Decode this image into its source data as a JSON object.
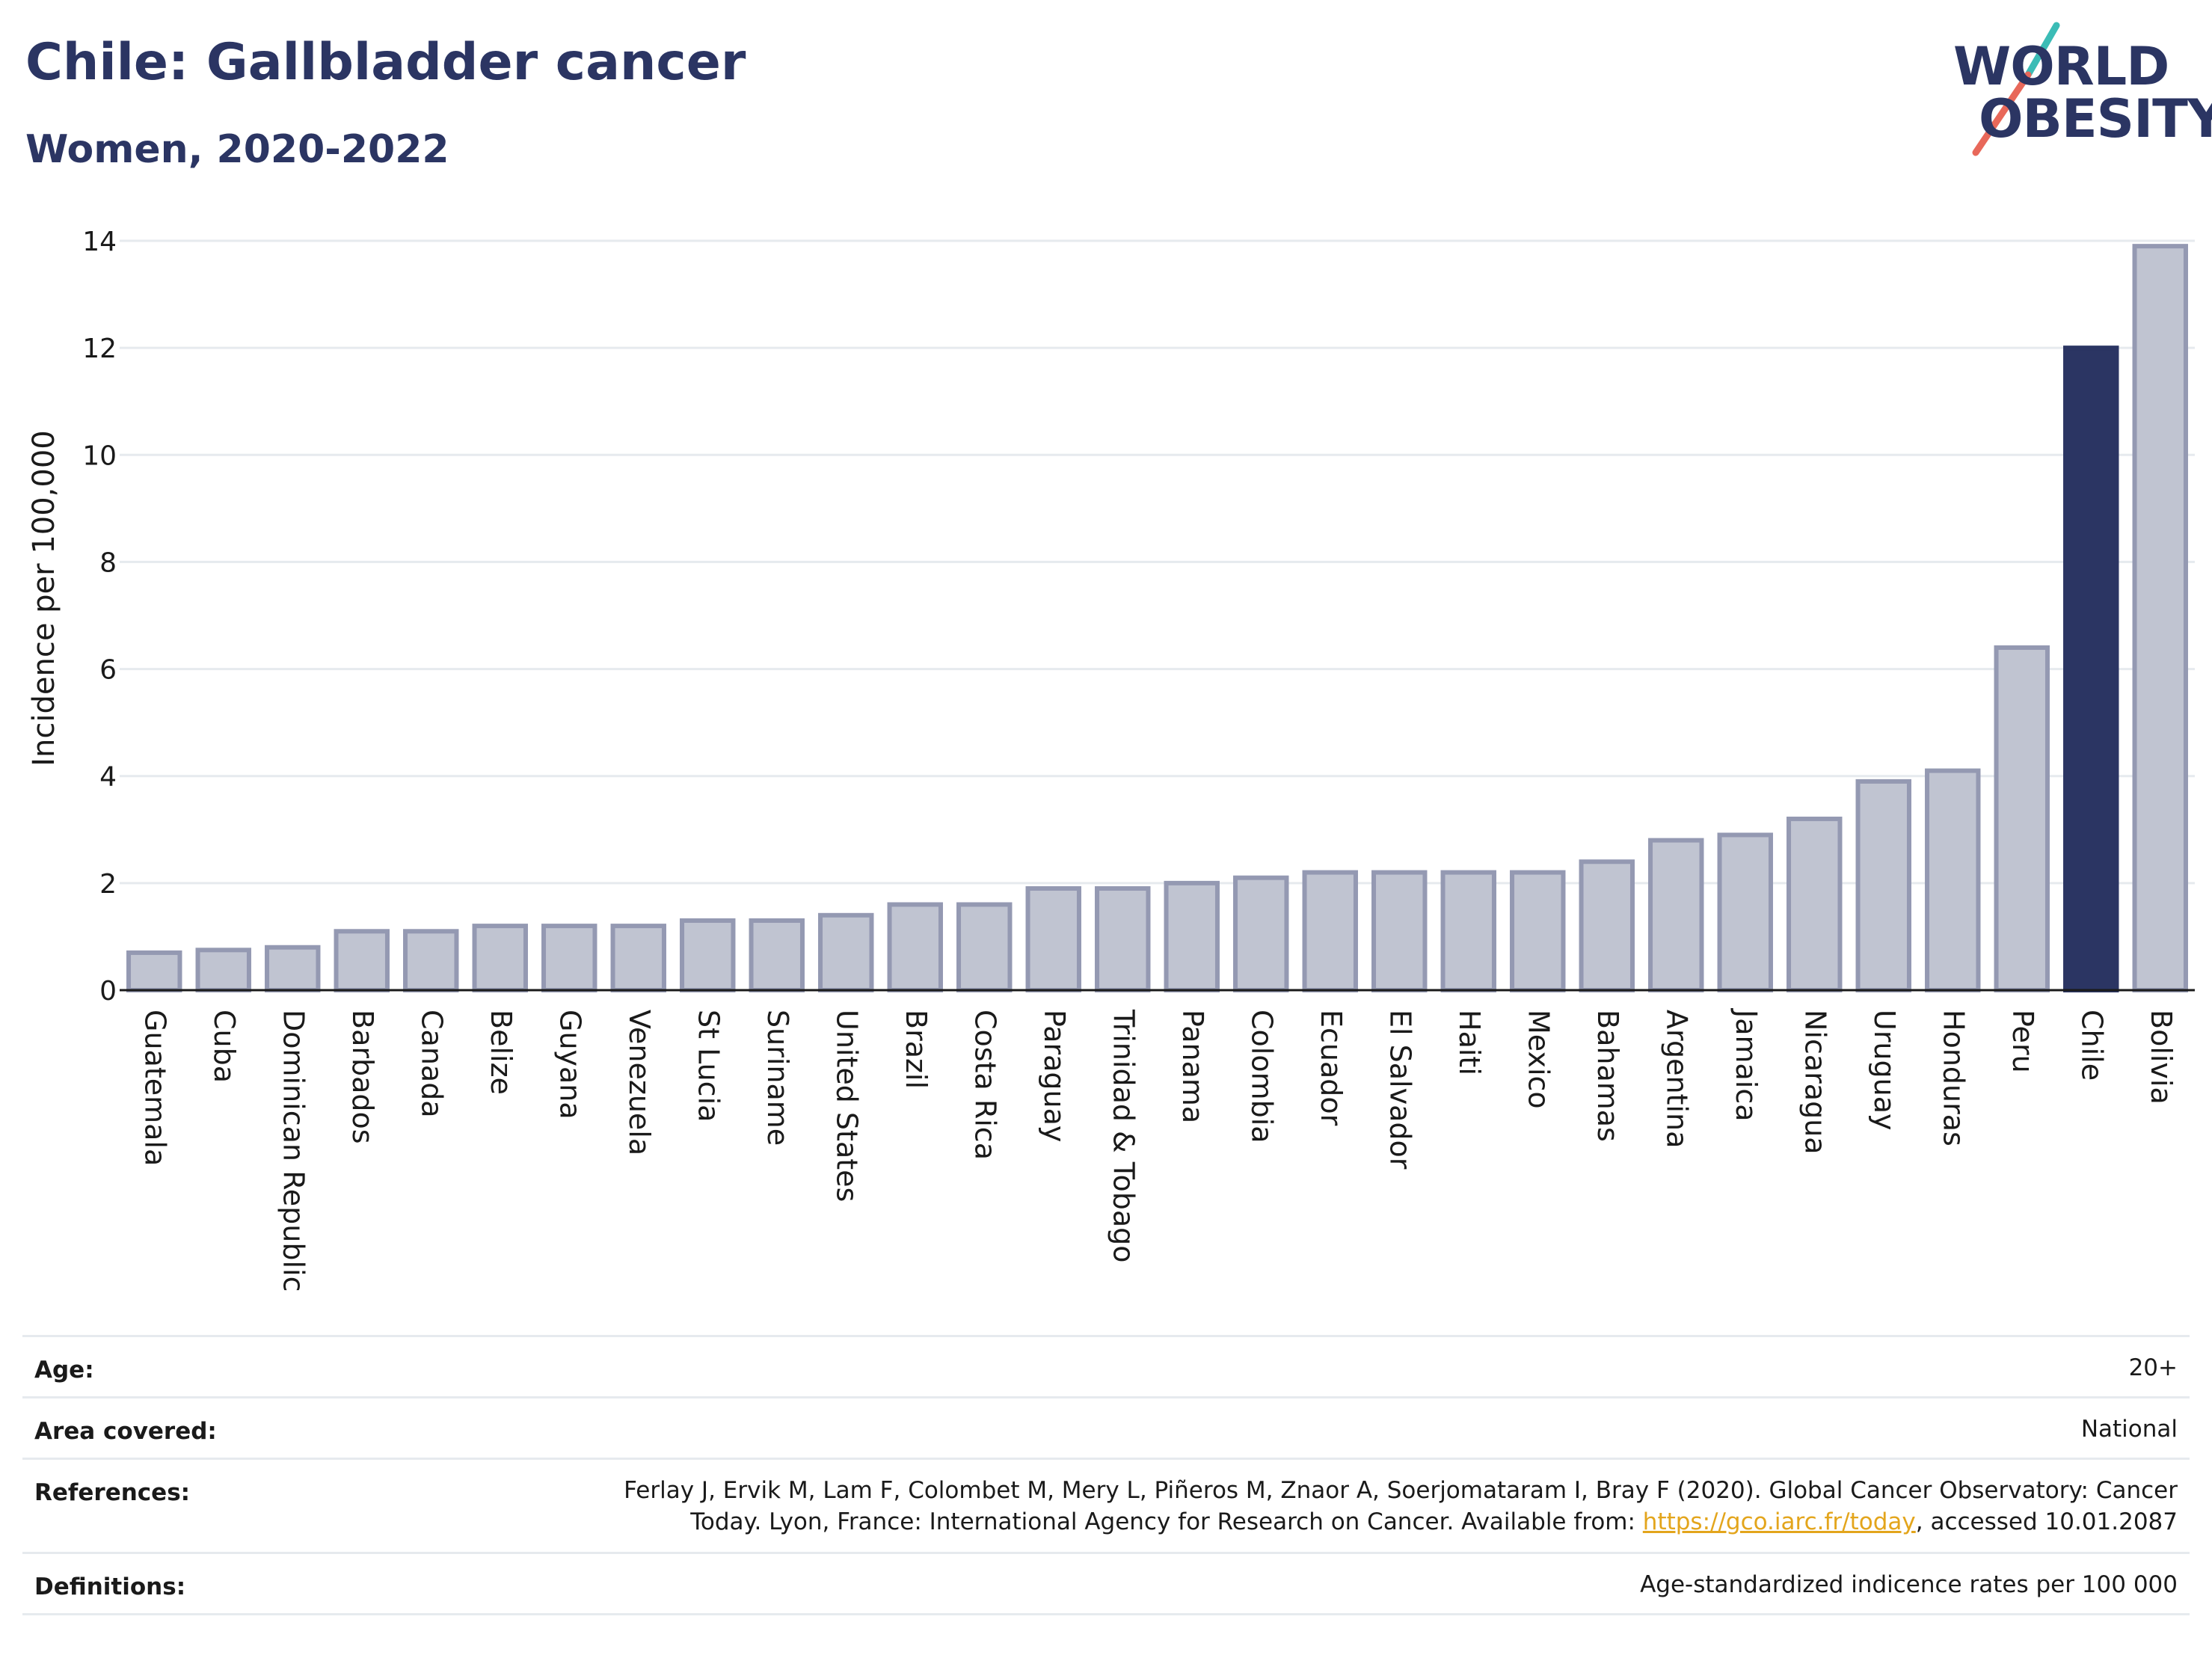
{
  "header": {
    "title": "Chile: Gallbladder cancer",
    "subtitle": "Women, 2020-2022"
  },
  "logo": {
    "line1": "WORLD",
    "line2": "OBESITY"
  },
  "colors": {
    "highlight": "#2b3563",
    "bar": "#c0c4d1",
    "bar_border": "#9499b2",
    "grid": "#e6eaee",
    "logo_slash_teal": "#3bbcb6",
    "logo_slash_red": "#e8685a",
    "link": "#e3a51c"
  },
  "chart_data": {
    "type": "bar",
    "title": "Chile: Gallbladder cancer",
    "subtitle": "Women, 2020-2022",
    "ylabel": "Incidence per 100,000",
    "xlabel": "",
    "ylim": [
      0,
      14
    ],
    "yticks": [
      0,
      2,
      4,
      6,
      8,
      10,
      12,
      14
    ],
    "grid": true,
    "highlight_category": "Chile",
    "categories": [
      "Guatemala",
      "Cuba",
      "Dominican Republic",
      "Barbados",
      "Canada",
      "Belize",
      "Guyana",
      "Venezuela",
      "St Lucia",
      "Suriname",
      "United States",
      "Brazil",
      "Costa Rica",
      "Paraguay",
      "Trinidad & Tobago",
      "Panama",
      "Colombia",
      "Ecuador",
      "El Salvador",
      "Haiti",
      "Mexico",
      "Bahamas",
      "Argentina",
      "Jamaica",
      "Nicaragua",
      "Uruguay",
      "Honduras",
      "Peru",
      "Chile",
      "Bolivia"
    ],
    "values": [
      0.7,
      0.75,
      0.8,
      1.1,
      1.1,
      1.2,
      1.2,
      1.2,
      1.3,
      1.3,
      1.4,
      1.6,
      1.6,
      1.9,
      1.9,
      2.0,
      2.1,
      2.2,
      2.2,
      2.2,
      2.2,
      2.4,
      2.8,
      2.9,
      3.2,
      3.9,
      4.1,
      6.4,
      12.0,
      13.9
    ]
  },
  "meta": {
    "rows": [
      {
        "label": "Age:",
        "value": "20+"
      },
      {
        "label": "Area covered:",
        "value": "National"
      },
      {
        "label": "References:",
        "value_line1": "Ferlay J, Ervik M, Lam F, Colombet M, Mery L, Piñeros M, Znaor A, Soerjomataram I, Bray F (2020). Global Cancer Observatory: Cancer",
        "value_line2_before": "Today. Lyon, France: International Agency for Research on Cancer. Available from: ",
        "link_text": "https://gco.iarc.fr/today",
        "value_line2_after": ", accessed 10.01.2087"
      },
      {
        "label": "Definitions:",
        "value": "Age-standardized indicence rates per 100 000"
      }
    ]
  }
}
